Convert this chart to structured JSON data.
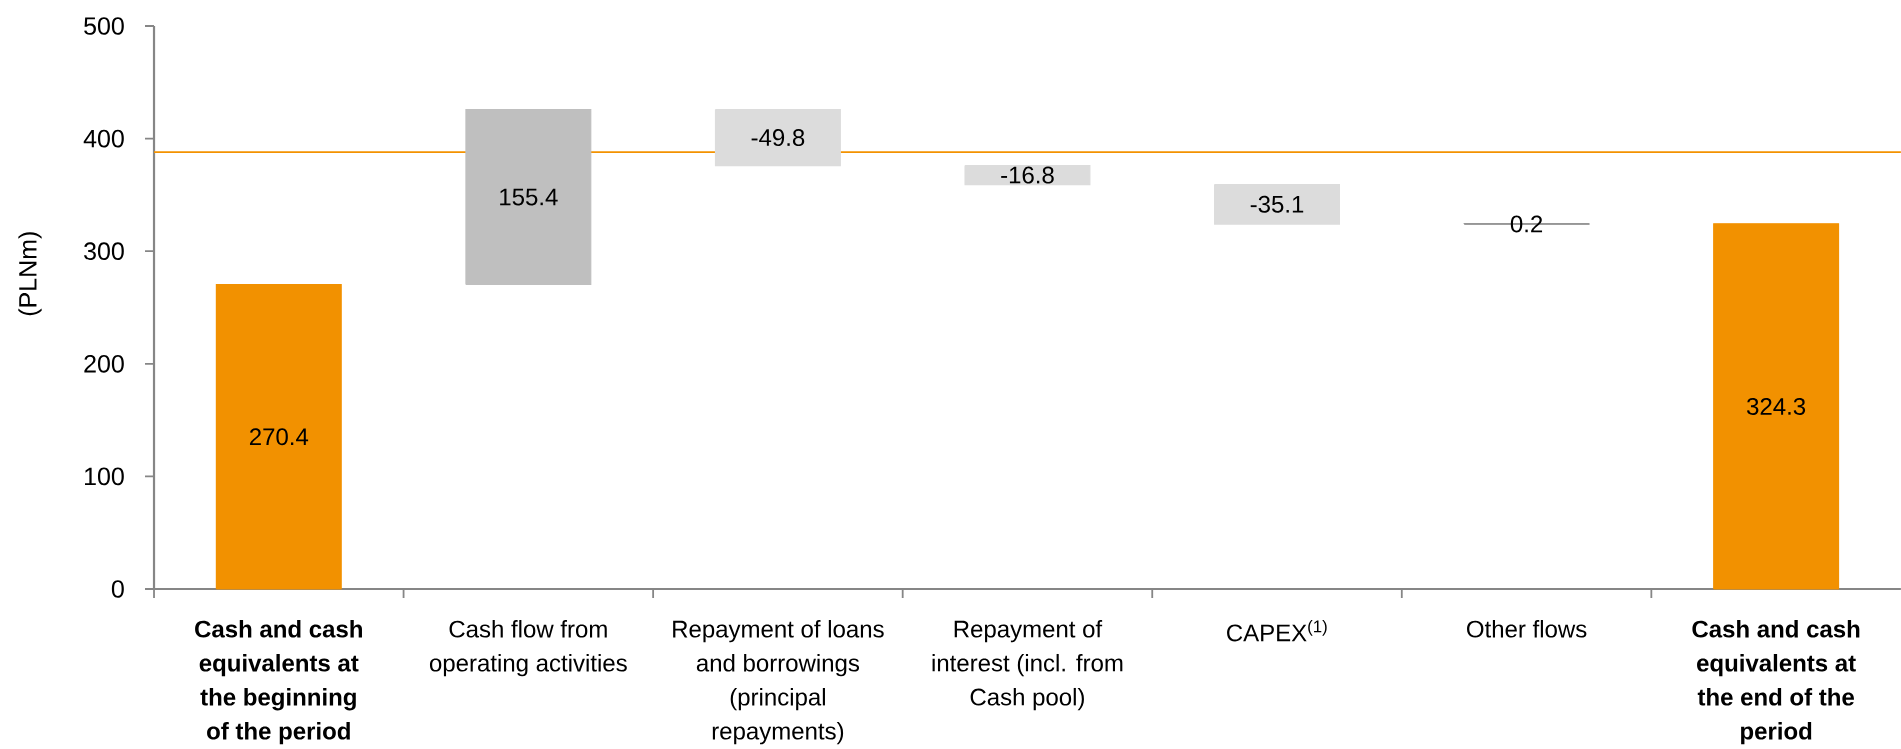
{
  "chart_data": {
    "type": "bar",
    "ylabel": "(PLNm)",
    "categories": [
      "Cash and cash equivalents at the beginning of the period",
      "Cash flow from operating activities",
      "Repayment of loans and borrowings (principal repayments)",
      "Repayment of interest (incl. from Cash pool)",
      "CAPEX$^{(1)}$",
      "Other flows",
      "Cash and cash equivalents at the end of the period"
    ],
    "values": [
      270.4,
      155.4,
      -49.8,
      -16.8,
      -35.1,
      0.2,
      324.3
    ],
    "base": [
      0,
      270.4,
      425.8,
      376,
      359.2,
      324.1,
      0
    ],
    "colors": [
      "#f29100",
      "#bfbfbf",
      "#dcdcdc",
      "#dcdcdc",
      "#dcdcdc",
      "#7f7f7f",
      "#f29100"
    ],
    "value_labels": [
      "270.4",
      "155.4",
      "-49.8",
      "-16.8",
      "-35.1",
      "0.2",
      "324.3"
    ],
    "ylim": [
      0,
      500
    ],
    "yticks": [
      0,
      100,
      200,
      300,
      400,
      500
    ],
    "ref_lines": [
      {
        "axis": "y",
        "value": 388,
        "color": "#f39200"
      }
    ]
  }
}
